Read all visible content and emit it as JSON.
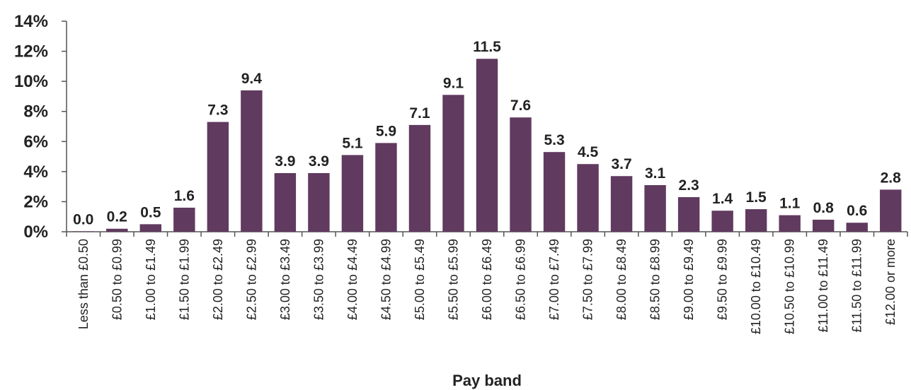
{
  "chart_data": {
    "type": "bar",
    "title": "",
    "xlabel": "Pay band",
    "ylabel": "",
    "ylim": [
      0,
      14
    ],
    "yticks": [
      "0%",
      "2%",
      "4%",
      "6%",
      "8%",
      "10%",
      "12%",
      "14%"
    ],
    "grid": false,
    "legend": "none",
    "bar_color": "#603a5f",
    "categories": [
      "Less than £0.50",
      "£0.50 to £0.99",
      "£1.00 to £1.49",
      "£1.50 to £1.99",
      "£2.00 to £2.49",
      "£2.50 to £2.99",
      "£3.00 to £3.49",
      "£3.50 to £3.99",
      "£4.00 to £4.49",
      "£4.50 to £4.99",
      "£5.00 to £5.49",
      "£5.50 to £5.99",
      "£6.00 to £6.49",
      "£6.50 to £6.99",
      "£7.00 to £7.49",
      "£7.50 to £7.99",
      "£8.00 to £8.49",
      "£8.50 to £8.99",
      "£9.00 to £9.49",
      "£9.50 to £9.99",
      "£10.00 to £10.49",
      "£10.50 to £10.99",
      "£11.00 to £11.49",
      "£11.50 to £11.99",
      "£12.00 or more"
    ],
    "values": [
      0.0,
      0.2,
      0.5,
      1.6,
      7.3,
      9.4,
      3.9,
      3.9,
      5.1,
      5.9,
      7.1,
      9.1,
      11.5,
      7.6,
      5.3,
      4.5,
      3.7,
      3.1,
      2.3,
      1.4,
      1.5,
      1.1,
      0.8,
      0.6,
      2.8
    ],
    "data_labels": [
      "0.0",
      "0.2",
      "0.5",
      "1.6",
      "7.3",
      "9.4",
      "3.9",
      "3.9",
      "5.1",
      "5.9",
      "7.1",
      "9.1",
      "11.5",
      "7.6",
      "5.3",
      "4.5",
      "3.7",
      "3.1",
      "2.3",
      "1.4",
      "1.5",
      "1.1",
      "0.8",
      "0.6",
      "2.8"
    ]
  }
}
